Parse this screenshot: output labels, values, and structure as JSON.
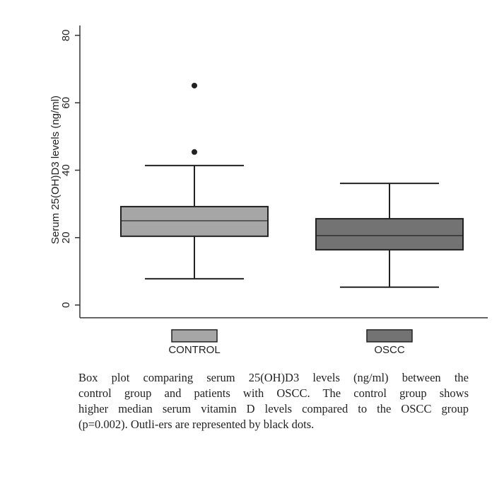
{
  "chart_data": {
    "type": "box",
    "y_label": "Serum 25(OH)D3 levels (ng/ml)",
    "categories": [
      "CONTROL",
      "OSCC"
    ],
    "series": [
      {
        "name": "CONTROL",
        "color": "#a6a6a6",
        "min": 7.8,
        "q1": 20.4,
        "median": 25.0,
        "q3": 29.2,
        "max": 41.4,
        "outliers": [
          45.4,
          65.1
        ]
      },
      {
        "name": "OSCC",
        "color": "#737373",
        "min": 5.3,
        "q1": 16.4,
        "median": 20.6,
        "q3": 25.6,
        "max": 36.1,
        "outliers": []
      }
    ],
    "ylim": [
      0,
      80
    ],
    "yticks": [
      0,
      20,
      40,
      60,
      80
    ]
  },
  "caption": {
    "lines": [
      "Box plot comparing serum 25(OH)D3 levels (ng/ml) between the",
      "control group and patients with OSCC. The control group shows",
      "higher median serum vitamin D levels compared to the OSCC group",
      "(p=0.002). Outli-ers are represented by black dots."
    ]
  }
}
